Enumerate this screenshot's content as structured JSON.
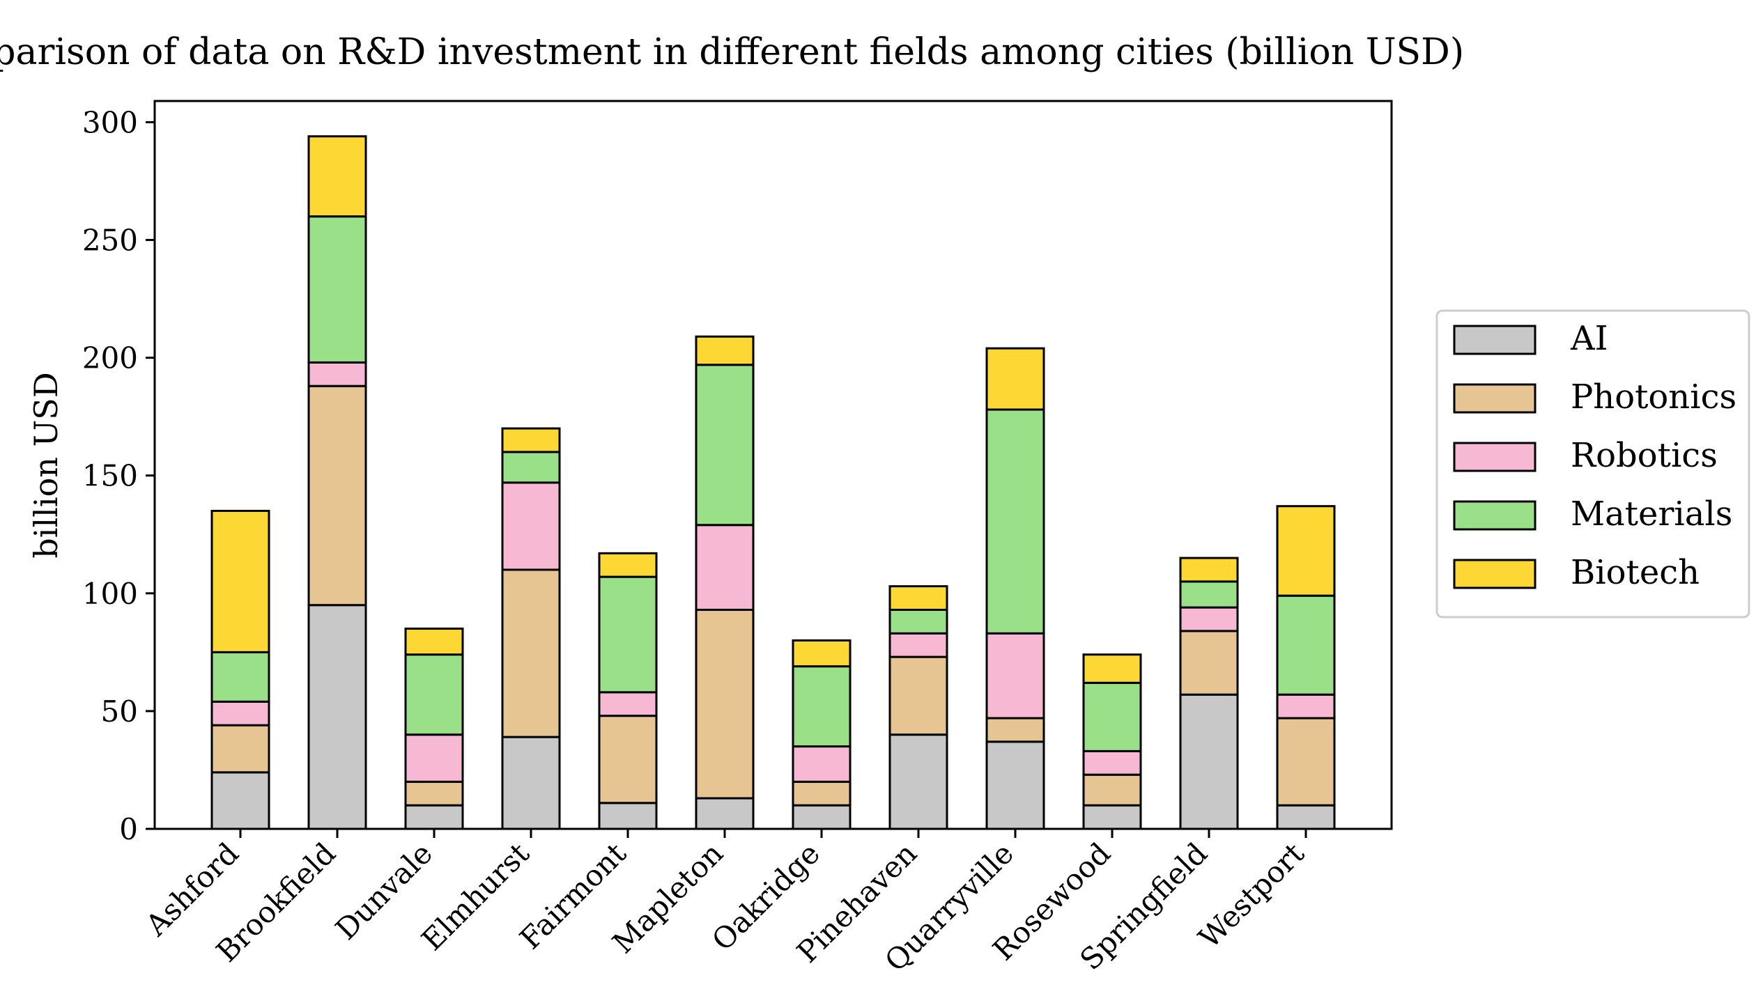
{
  "chart_data": {
    "type": "bar",
    "stacked": true,
    "title": "Comparison of data on R&D investment in different fields among cities (billion USD)",
    "xlabel": "",
    "ylabel": "billion USD",
    "ylim": [
      0,
      309
    ],
    "yticks": [
      0,
      50,
      100,
      150,
      200,
      250,
      300
    ],
    "grid": false,
    "legend_position": "right",
    "categories": [
      "Ashford",
      "Brookfield",
      "Dunvale",
      "Elmhurst",
      "Fairmont",
      "Mapleton",
      "Oakridge",
      "Pinehaven",
      "Quarryville",
      "Rosewood",
      "Springfield",
      "Westport"
    ],
    "series": [
      {
        "name": "AI",
        "color": "#c8c8c8",
        "values": [
          24,
          95,
          10,
          39,
          11,
          13,
          10,
          40,
          37,
          10,
          57,
          10
        ]
      },
      {
        "name": "Photonics",
        "color": "#e6c593",
        "values": [
          20,
          93,
          10,
          71,
          37,
          80,
          10,
          33,
          10,
          13,
          27,
          37
        ]
      },
      {
        "name": "Robotics",
        "color": "#f7b8d4",
        "values": [
          10,
          10,
          20,
          37,
          10,
          36,
          15,
          10,
          36,
          10,
          10,
          10
        ]
      },
      {
        "name": "Materials",
        "color": "#99e088",
        "values": [
          21,
          62,
          34,
          13,
          49,
          68,
          34,
          10,
          95,
          29,
          11,
          42
        ]
      },
      {
        "name": "Biotech",
        "color": "#fdd835",
        "values": [
          60,
          34,
          11,
          10,
          10,
          12,
          11,
          10,
          26,
          12,
          10,
          38
        ]
      }
    ]
  }
}
